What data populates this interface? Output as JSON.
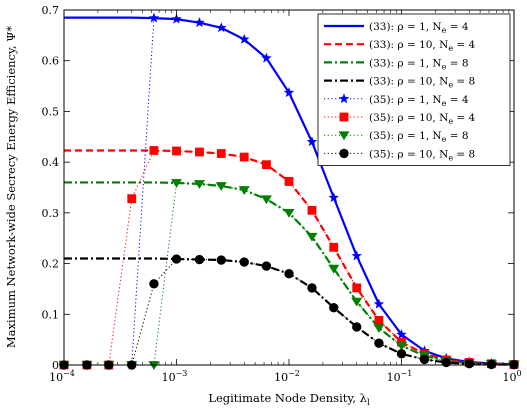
{
  "chart_data": {
    "type": "line",
    "xlabel": "Legitimate Node Density, λ",
    "xlabel_sub": "l",
    "ylabel": "Maximum Network-wide Secrecy Energy Efficiency, Ψ*",
    "x_scale": "log",
    "xlim": [
      0.0001,
      1
    ],
    "ylim": [
      0,
      0.7
    ],
    "x_ticks": [
      {
        "value": 0.0001,
        "base": "10",
        "exp": "−4"
      },
      {
        "value": 0.001,
        "base": "10",
        "exp": "−3"
      },
      {
        "value": 0.01,
        "base": "10",
        "exp": "−2"
      },
      {
        "value": 0.1,
        "base": "10",
        "exp": "−1"
      },
      {
        "value": 1,
        "base": "10",
        "exp": "0"
      }
    ],
    "y_ticks": [
      "0",
      "0.1",
      "0.2",
      "0.3",
      "0.4",
      "0.5",
      "0.6",
      "0.7"
    ],
    "grid": false,
    "legend_position": "top-right",
    "series": [
      {
        "name": "(33): ρ = 1, N_e = 4",
        "color": "#0000ff",
        "style": "solid",
        "marker": "none",
        "x": [
          0.0001,
          0.00016,
          0.00025,
          0.0004,
          0.00063,
          0.001,
          0.0016,
          0.0025,
          0.004,
          0.0063,
          0.01,
          0.016,
          0.025,
          0.04,
          0.063,
          0.1,
          0.16,
          0.25,
          0.4,
          0.63,
          1
        ],
        "y": [
          0.685,
          0.685,
          0.685,
          0.685,
          0.684,
          0.682,
          0.675,
          0.665,
          0.642,
          0.605,
          0.537,
          0.44,
          0.33,
          0.215,
          0.12,
          0.06,
          0.028,
          0.013,
          0.006,
          0.003,
          0.0015
        ]
      },
      {
        "name": "(33): ρ = 10, N_e = 4",
        "color": "#ff0000",
        "style": "dashed",
        "marker": "none",
        "x": [
          0.0001,
          0.00016,
          0.00025,
          0.0004,
          0.00063,
          0.001,
          0.0016,
          0.0025,
          0.004,
          0.0063,
          0.01,
          0.016,
          0.025,
          0.04,
          0.063,
          0.1,
          0.16,
          0.25,
          0.4,
          0.63,
          1
        ],
        "y": [
          0.423,
          0.423,
          0.423,
          0.423,
          0.423,
          0.422,
          0.42,
          0.417,
          0.41,
          0.395,
          0.362,
          0.305,
          0.232,
          0.152,
          0.088,
          0.045,
          0.022,
          0.01,
          0.005,
          0.0025,
          0.001
        ]
      },
      {
        "name": "(33): ρ = 1, N_e = 8",
        "color": "#008000",
        "style": "dashdot",
        "marker": "none",
        "x": [
          0.0001,
          0.00016,
          0.00025,
          0.0004,
          0.00063,
          0.001,
          0.0016,
          0.0025,
          0.004,
          0.0063,
          0.01,
          0.016,
          0.025,
          0.04,
          0.063,
          0.1,
          0.16,
          0.25,
          0.4,
          0.63,
          1
        ],
        "y": [
          0.36,
          0.36,
          0.36,
          0.36,
          0.36,
          0.359,
          0.357,
          0.353,
          0.345,
          0.327,
          0.3,
          0.253,
          0.19,
          0.125,
          0.073,
          0.038,
          0.018,
          0.008,
          0.004,
          0.002,
          0.001
        ]
      },
      {
        "name": "(33): ρ = 10, N_e = 8",
        "color": "#000000",
        "style": "dashdot",
        "marker": "none",
        "x": [
          0.0001,
          0.00016,
          0.00025,
          0.0004,
          0.00063,
          0.001,
          0.0016,
          0.0025,
          0.004,
          0.0063,
          0.01,
          0.016,
          0.025,
          0.04,
          0.063,
          0.1,
          0.16,
          0.25,
          0.4,
          0.63,
          1
        ],
        "y": [
          0.21,
          0.21,
          0.21,
          0.21,
          0.21,
          0.209,
          0.208,
          0.207,
          0.203,
          0.195,
          0.18,
          0.152,
          0.113,
          0.075,
          0.043,
          0.022,
          0.011,
          0.005,
          0.0025,
          0.0012,
          0.0006
        ]
      },
      {
        "name": "(35): ρ = 1, N_e = 4",
        "color": "#0000ff",
        "style": "dotted",
        "marker": "star",
        "x": [
          0.0001,
          0.00016,
          0.00025,
          0.0004,
          0.00063,
          0.001,
          0.0016,
          0.0025,
          0.004,
          0.0063,
          0.01,
          0.016,
          0.025,
          0.04,
          0.063,
          0.1,
          0.16,
          0.25,
          0.4,
          0.63,
          1
        ],
        "y": [
          0,
          0,
          0,
          0,
          0.684,
          0.682,
          0.675,
          0.665,
          0.642,
          0.605,
          0.537,
          0.44,
          0.33,
          0.215,
          0.12,
          0.06,
          0.028,
          0.013,
          0.006,
          0.003,
          0.0015
        ]
      },
      {
        "name": "(35): ρ = 10, N_e = 4",
        "color": "#ff0000",
        "style": "dotted",
        "marker": "square",
        "x": [
          0.0001,
          0.00016,
          0.00025,
          0.0004,
          0.00063,
          0.001,
          0.0016,
          0.0025,
          0.004,
          0.0063,
          0.01,
          0.016,
          0.025,
          0.04,
          0.063,
          0.1,
          0.16,
          0.25,
          0.4,
          0.63,
          1
        ],
        "y": [
          0,
          0,
          0,
          0.328,
          0.423,
          0.422,
          0.42,
          0.417,
          0.41,
          0.395,
          0.362,
          0.305,
          0.232,
          0.152,
          0.088,
          0.045,
          0.022,
          0.01,
          0.005,
          0.0025,
          0.001
        ]
      },
      {
        "name": "(35): ρ = 1, N_e = 8",
        "color": "#008000",
        "style": "dotted",
        "marker": "triangle-down",
        "x": [
          0.0001,
          0.00016,
          0.00025,
          0.0004,
          0.00063,
          0.001,
          0.0016,
          0.0025,
          0.004,
          0.0063,
          0.01,
          0.016,
          0.025,
          0.04,
          0.063,
          0.1,
          0.16,
          0.25,
          0.4,
          0.63,
          1
        ],
        "y": [
          0,
          0,
          0,
          0,
          0,
          0.359,
          0.357,
          0.353,
          0.345,
          0.327,
          0.3,
          0.253,
          0.19,
          0.125,
          0.073,
          0.038,
          0.018,
          0.008,
          0.004,
          0.002,
          0.001
        ]
      },
      {
        "name": "(35): ρ = 10, N_e = 8",
        "color": "#000000",
        "style": "dotted",
        "marker": "circle",
        "x": [
          0.0001,
          0.00016,
          0.00025,
          0.0004,
          0.00063,
          0.001,
          0.0016,
          0.0025,
          0.004,
          0.0063,
          0.01,
          0.016,
          0.025,
          0.04,
          0.063,
          0.1,
          0.16,
          0.25,
          0.4,
          0.63,
          1
        ],
        "y": [
          0,
          0,
          0,
          0,
          0.16,
          0.209,
          0.208,
          0.207,
          0.203,
          0.195,
          0.18,
          0.152,
          0.113,
          0.075,
          0.043,
          0.022,
          0.011,
          0.005,
          0.0025,
          0.0012,
          0.0006
        ]
      }
    ]
  }
}
